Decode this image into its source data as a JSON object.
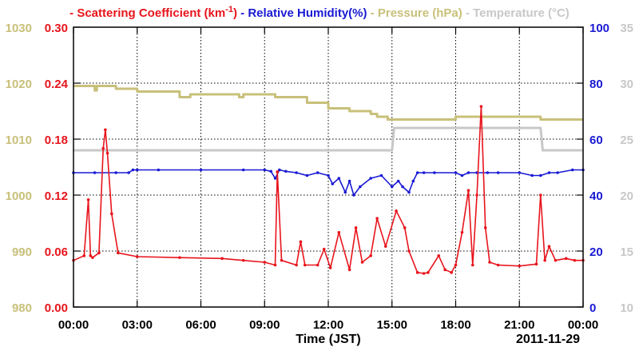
{
  "chart_data": {
    "type": "line",
    "legend": [
      {
        "prefix": "- ",
        "text": "Scattering Coefficient (km",
        "sup": "-1",
        "suffix": ")",
        "color": "#e8141c"
      },
      {
        "prefix": "- ",
        "text": "Relative Humidity(%)",
        "color": "#1a1ad4"
      },
      {
        "prefix": "- ",
        "text": "Pressure (hPa)",
        "color": "#c8c07a"
      },
      {
        "prefix": "- ",
        "text": "Temperature (°C)",
        "color": "#c8c8c8"
      }
    ],
    "xlabel": "Time (JST)",
    "date_label": "2011-11-29",
    "x_ticks": [
      "00:00",
      "03:00",
      "06:00",
      "09:00",
      "12:00",
      "15:00",
      "18:00",
      "21:00",
      "00:00"
    ],
    "xlim_hours": [
      0,
      24
    ],
    "axes": {
      "pressure": {
        "ticks": [
          "980",
          "990",
          "1000",
          "1010",
          "1020",
          "1030"
        ],
        "range": [
          980,
          1030
        ],
        "color": "#c8c07a"
      },
      "scattering": {
        "ticks": [
          "0.00",
          "0.06",
          "0.12",
          "0.18",
          "0.24",
          "0.30"
        ],
        "range": [
          0,
          0.3
        ],
        "color": "#e8141c"
      },
      "humidity": {
        "ticks": [
          "0",
          "20",
          "40",
          "60",
          "80",
          "100"
        ],
        "range": [
          0,
          100
        ],
        "color": "#1a1ad4"
      },
      "temperature": {
        "ticks": [
          "10",
          "15",
          "20",
          "25",
          "30",
          "35"
        ],
        "range": [
          10,
          35
        ],
        "color": "#c8c8c8"
      }
    },
    "grid": true,
    "series": [
      {
        "name": "Scattering Coefficient",
        "axis": "scattering",
        "color": "#e8141c",
        "x": [
          0,
          0.5,
          0.7,
          0.8,
          0.9,
          1.2,
          1.4,
          1.5,
          1.6,
          1.8,
          2.1,
          3,
          5,
          7,
          8,
          9,
          9.5,
          9.6,
          9.8,
          10.5,
          10.7,
          10.9,
          11.5,
          11.8,
          12.1,
          12.5,
          13,
          13.3,
          13.6,
          14,
          14.3,
          14.7,
          15.2,
          15.6,
          15.8,
          16.2,
          16.5,
          16.7,
          17.2,
          17.5,
          17.8,
          18,
          18.3,
          18.6,
          18.8,
          19,
          19.2,
          19.4,
          19.6,
          20,
          21,
          21.8,
          22,
          22.2,
          22.4,
          22.7,
          23.2,
          23.6,
          24
        ],
        "y": [
          0.05,
          0.055,
          0.115,
          0.055,
          0.053,
          0.058,
          0.17,
          0.19,
          0.165,
          0.1,
          0.058,
          0.054,
          0.053,
          0.052,
          0.05,
          0.048,
          0.045,
          0.145,
          0.05,
          0.045,
          0.07,
          0.045,
          0.045,
          0.062,
          0.042,
          0.08,
          0.04,
          0.085,
          0.048,
          0.055,
          0.095,
          0.065,
          0.103,
          0.085,
          0.06,
          0.037,
          0.036,
          0.037,
          0.055,
          0.04,
          0.037,
          0.045,
          0.08,
          0.125,
          0.045,
          0.12,
          0.215,
          0.085,
          0.048,
          0.045,
          0.044,
          0.046,
          0.12,
          0.05,
          0.065,
          0.05,
          0.052,
          0.05,
          0.05
        ]
      },
      {
        "name": "Relative Humidity",
        "axis": "humidity",
        "color": "#1a1ad4",
        "x": [
          0,
          1,
          2,
          2.6,
          2.8,
          3,
          4,
          6,
          8,
          9,
          9.3,
          9.5,
          9.7,
          10,
          10.5,
          11,
          11.5,
          12,
          12.2,
          12.5,
          12.8,
          13,
          13.2,
          13.5,
          14,
          14.5,
          15,
          15.3,
          15.5,
          15.8,
          16,
          16.2,
          16.5,
          17,
          18,
          18.3,
          18.6,
          19,
          19.5,
          20,
          21,
          21.6,
          22,
          22.4,
          22.8,
          23.5,
          24
        ],
        "y": [
          48,
          48,
          48,
          48,
          49,
          49,
          49,
          49,
          49,
          49,
          48.5,
          46,
          49,
          48.5,
          48,
          47,
          48,
          47,
          44,
          46,
          41,
          45,
          40,
          43,
          46,
          47,
          43,
          45,
          43,
          41,
          45,
          48,
          48,
          48,
          48,
          47,
          48,
          48,
          48,
          48,
          48,
          47,
          47,
          48,
          48,
          49,
          49
        ]
      },
      {
        "name": "Pressure",
        "axis": "pressure",
        "color": "#c8c07a",
        "x": [
          0,
          0.9,
          1,
          1.1,
          2,
          2.8,
          3,
          4,
          5,
          5.5,
          6,
          7,
          7.8,
          8,
          9,
          9.5,
          10,
          11,
          11.8,
          12,
          13,
          14,
          14.3,
          14.8,
          15,
          15.8,
          16,
          17,
          18,
          19,
          20,
          21,
          22,
          23,
          24
        ],
        "y": [
          1019.5,
          1019.5,
          1018.7,
          1019.5,
          1019,
          1019,
          1018.5,
          1018.5,
          1017.5,
          1018,
          1018,
          1018,
          1017.5,
          1018,
          1018,
          1017.5,
          1017.5,
          1016.5,
          1016.5,
          1015.5,
          1015,
          1014.5,
          1014,
          1013.5,
          1013.5,
          1013.5,
          1013.5,
          1013.5,
          1014,
          1014,
          1014,
          1014,
          1013.5,
          1013.5,
          1013.5
        ]
      },
      {
        "name": "Temperature",
        "axis": "temperature",
        "color": "#c8c8c8",
        "x": [
          0,
          5,
          10,
          15,
          15.1,
          18,
          19,
          22,
          22.1,
          24
        ],
        "y": [
          24,
          24,
          24,
          24,
          26,
          26,
          26,
          26,
          24,
          24
        ]
      }
    ]
  }
}
